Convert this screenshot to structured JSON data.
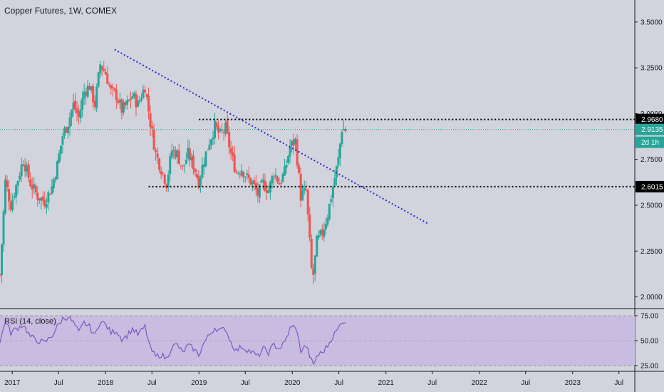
{
  "title": "Copper Futures, 1W, COMEX",
  "rsi_label": "RSI (14, close)",
  "colors": {
    "background": "#d1d4dc",
    "up": "#26a69a",
    "down": "#ef5350",
    "rsi_line": "#7e57c2",
    "rsi_band": "#c8bce0",
    "trendline": "#2929c9",
    "level_line": "#000000",
    "current_line": "#26a69a"
  },
  "price_tags": {
    "resistance": "2.9680",
    "current": "2.9135",
    "countdown": "2d 1h",
    "support": "2.6015"
  },
  "chart_data": [
    {
      "type": "candlestick",
      "title": "Copper Futures, 1W, COMEX",
      "y_ticks": [
        "3.5000",
        "3.2500",
        "3.0000",
        "2.7500",
        "2.5000",
        "2.2500",
        "2.0000"
      ],
      "x_ticks": [
        "2017",
        "Jul",
        "2018",
        "Jul",
        "2019",
        "Jul",
        "2020",
        "Jul",
        "2021",
        "Jul",
        "2022",
        "Jul",
        "2023",
        "Jul"
      ],
      "x_tick_dates": [
        "2017-01-01",
        "2017-07-01",
        "2018-01-01",
        "2018-07-01",
        "2019-01-01",
        "2019-07-01",
        "2020-01-01",
        "2020-07-01",
        "2021-01-01",
        "2021-07-01",
        "2022-01-01",
        "2022-07-01",
        "2023-01-01",
        "2023-07-01"
      ],
      "ylim": [
        1.94,
        3.62
      ],
      "xlim": [
        "2016-11-14",
        "2023-09-01"
      ],
      "weekly_close_path": [
        [
          "2016-11-14",
          2.12
        ],
        [
          "2016-12-05",
          2.63
        ],
        [
          "2016-12-26",
          2.5
        ],
        [
          "2017-02-13",
          2.75
        ],
        [
          "2017-03-13",
          2.62
        ],
        [
          "2017-04-10",
          2.55
        ],
        [
          "2017-05-08",
          2.52
        ],
        [
          "2017-06-05",
          2.6
        ],
        [
          "2017-06-26",
          2.72
        ],
        [
          "2017-07-17",
          2.88
        ],
        [
          "2017-08-07",
          2.95
        ],
        [
          "2017-08-28",
          3.05
        ],
        [
          "2017-09-18",
          2.98
        ],
        [
          "2017-10-09",
          3.12
        ],
        [
          "2017-10-30",
          3.15
        ],
        [
          "2017-11-20",
          3.05
        ],
        [
          "2017-12-11",
          3.27
        ],
        [
          "2018-01-01",
          3.22
        ],
        [
          "2018-01-22",
          3.12
        ],
        [
          "2018-02-12",
          3.1
        ],
        [
          "2018-03-05",
          3.02
        ],
        [
          "2018-03-26",
          3.05
        ],
        [
          "2018-04-16",
          3.1
        ],
        [
          "2018-05-07",
          3.05
        ],
        [
          "2018-06-04",
          3.15
        ],
        [
          "2018-06-25",
          2.95
        ],
        [
          "2018-07-16",
          2.78
        ],
        [
          "2018-08-06",
          2.7
        ],
        [
          "2018-08-27",
          2.62
        ],
        [
          "2018-09-17",
          2.8
        ],
        [
          "2018-10-08",
          2.78
        ],
        [
          "2018-10-29",
          2.7
        ],
        [
          "2018-11-19",
          2.78
        ],
        [
          "2018-12-10",
          2.72
        ],
        [
          "2018-12-31",
          2.63
        ],
        [
          "2019-01-21",
          2.75
        ],
        [
          "2019-02-11",
          2.85
        ],
        [
          "2019-03-04",
          2.93
        ],
        [
          "2019-03-25",
          2.88
        ],
        [
          "2019-04-15",
          2.92
        ],
        [
          "2019-05-06",
          2.78
        ],
        [
          "2019-05-27",
          2.68
        ],
        [
          "2019-06-17",
          2.7
        ],
        [
          "2019-07-08",
          2.65
        ],
        [
          "2019-07-29",
          2.62
        ],
        [
          "2019-08-19",
          2.56
        ],
        [
          "2019-09-09",
          2.62
        ],
        [
          "2019-09-30",
          2.58
        ],
        [
          "2019-10-21",
          2.68
        ],
        [
          "2019-11-11",
          2.62
        ],
        [
          "2019-12-02",
          2.68
        ],
        [
          "2019-12-23",
          2.82
        ],
        [
          "2020-01-13",
          2.85
        ],
        [
          "2020-02-03",
          2.55
        ],
        [
          "2020-02-24",
          2.58
        ],
        [
          "2020-03-16",
          2.15
        ],
        [
          "2020-03-23",
          2.12
        ],
        [
          "2020-04-06",
          2.3
        ],
        [
          "2020-04-27",
          2.35
        ],
        [
          "2020-05-18",
          2.45
        ],
        [
          "2020-06-08",
          2.6
        ],
        [
          "2020-06-29",
          2.75
        ],
        [
          "2020-07-13",
          2.92
        ],
        [
          "2020-07-27",
          2.91
        ]
      ],
      "candles_down_dates": [
        "2018-06-25",
        "2020-01-20",
        "2020-02-24",
        "2020-03-09"
      ],
      "resistance_level": 2.968,
      "support_level": 2.6015,
      "current_price": 2.9135,
      "trendline": {
        "from": [
          "2018-02-05",
          3.35
        ],
        "to": [
          "2021-06-14",
          2.4
        ]
      }
    },
    {
      "type": "line",
      "title": "RSI (14, close)",
      "y_ticks": [
        "75.00",
        "50.00",
        "25.00"
      ],
      "ylim": [
        20,
        80
      ],
      "band": [
        25,
        75
      ],
      "series": [
        {
          "values": [
            [
              "2016-11-14",
              48
            ],
            [
              "2016-12-05",
              70
            ],
            [
              "2016-12-26",
              58
            ],
            [
              "2017-01-16",
              62
            ],
            [
              "2017-02-13",
              66
            ],
            [
              "2017-03-13",
              54
            ],
            [
              "2017-04-10",
              50
            ],
            [
              "2017-05-08",
              48
            ],
            [
              "2017-06-05",
              55
            ],
            [
              "2017-06-26",
              64
            ],
            [
              "2017-07-17",
              72
            ],
            [
              "2017-08-07",
              74
            ],
            [
              "2017-08-28",
              68
            ],
            [
              "2017-09-18",
              58
            ],
            [
              "2017-10-09",
              68
            ],
            [
              "2017-10-30",
              64
            ],
            [
              "2017-11-20",
              55
            ],
            [
              "2017-12-11",
              70
            ],
            [
              "2018-01-01",
              66
            ],
            [
              "2018-01-22",
              58
            ],
            [
              "2018-02-12",
              60
            ],
            [
              "2018-03-05",
              52
            ],
            [
              "2018-03-26",
              55
            ],
            [
              "2018-04-16",
              62
            ],
            [
              "2018-05-07",
              56
            ],
            [
              "2018-06-04",
              64
            ],
            [
              "2018-06-25",
              42
            ],
            [
              "2018-07-16",
              34
            ],
            [
              "2018-08-06",
              36
            ],
            [
              "2018-08-27",
              32
            ],
            [
              "2018-09-17",
              44
            ],
            [
              "2018-10-08",
              46
            ],
            [
              "2018-10-29",
              38
            ],
            [
              "2018-11-19",
              45
            ],
            [
              "2018-12-10",
              42
            ],
            [
              "2018-12-31",
              36
            ],
            [
              "2019-01-21",
              48
            ],
            [
              "2019-02-11",
              56
            ],
            [
              "2019-03-04",
              63
            ],
            [
              "2019-03-25",
              60
            ],
            [
              "2019-04-15",
              62
            ],
            [
              "2019-05-06",
              48
            ],
            [
              "2019-05-27",
              40
            ],
            [
              "2019-06-17",
              44
            ],
            [
              "2019-07-08",
              41
            ],
            [
              "2019-07-29",
              38
            ],
            [
              "2019-08-19",
              34
            ],
            [
              "2019-09-09",
              42
            ],
            [
              "2019-09-30",
              38
            ],
            [
              "2019-10-21",
              46
            ],
            [
              "2019-11-11",
              42
            ],
            [
              "2019-12-02",
              48
            ],
            [
              "2019-12-23",
              62
            ],
            [
              "2020-01-13",
              65
            ],
            [
              "2020-02-03",
              40
            ],
            [
              "2020-02-24",
              45
            ],
            [
              "2020-03-16",
              30
            ],
            [
              "2020-03-23",
              25
            ],
            [
              "2020-04-06",
              35
            ],
            [
              "2020-04-27",
              38
            ],
            [
              "2020-05-18",
              45
            ],
            [
              "2020-06-08",
              55
            ],
            [
              "2020-06-29",
              62
            ],
            [
              "2020-07-13",
              70
            ],
            [
              "2020-07-27",
              68
            ]
          ]
        }
      ]
    }
  ]
}
